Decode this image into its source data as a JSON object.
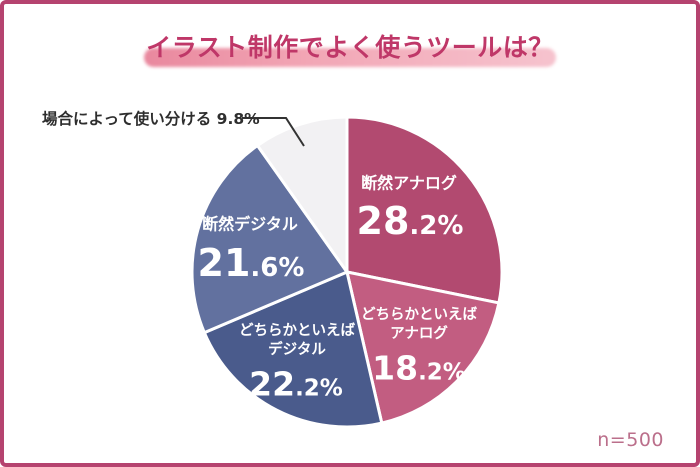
{
  "frame": {
    "border_color": "#b5436f",
    "background": "#ffffff"
  },
  "title": {
    "text": "イラスト制作でよく使うツールは？",
    "color": "#bf3768",
    "highlight_gradient_left": "#e9889e",
    "highlight_gradient_mid": "#f2a6b5",
    "highlight_gradient_right": "#f6c3ce"
  },
  "chart_data": {
    "type": "pie",
    "title": "イラスト制作でよく使うツールは？",
    "unit": "%",
    "total": 100,
    "sample_size": "n=500",
    "start_angle_deg": 0,
    "direction": "clockwise",
    "slices": [
      {
        "label": "断然アナログ",
        "label_lines": [
          "断然アナログ"
        ],
        "value": 28.2,
        "value_label": "28.2%",
        "value_main": "28",
        "value_rest": ".2%",
        "color": "#b24a70",
        "text_color": "#ffffff"
      },
      {
        "label": "どちらかといえばアナログ",
        "label_lines": [
          "どちらかといえば",
          "アナログ"
        ],
        "value": 18.2,
        "value_label": "18.2%",
        "value_main": "18",
        "value_rest": ".2%",
        "color": "#c25d81",
        "text_color": "#ffffff"
      },
      {
        "label": "どちらかといえばデジタル",
        "label_lines": [
          "どちらかといえば",
          "デジタル"
        ],
        "value": 22.2,
        "value_label": "22.2%",
        "value_main": "22",
        "value_rest": ".2%",
        "color": "#4a5b8c",
        "text_color": "#ffffff"
      },
      {
        "label": "断然デジタル",
        "label_lines": [
          "断然デジタル"
        ],
        "value": 21.6,
        "value_label": "21.6%",
        "value_main": "21",
        "value_rest": ".6%",
        "color": "#62719f",
        "text_color": "#ffffff"
      },
      {
        "label": "場合によって使い分ける",
        "label_lines": [],
        "value": 9.8,
        "value_label": "9.8%",
        "color": "#f2f1f3",
        "text_color": "#333333"
      }
    ],
    "callout": {
      "text": "場合によって使い分ける 9.8%",
      "color": "#2e2e2e",
      "line_color": "#333333"
    }
  },
  "footer": {
    "sample_size": "n=500",
    "color": "#bb6f8b"
  }
}
